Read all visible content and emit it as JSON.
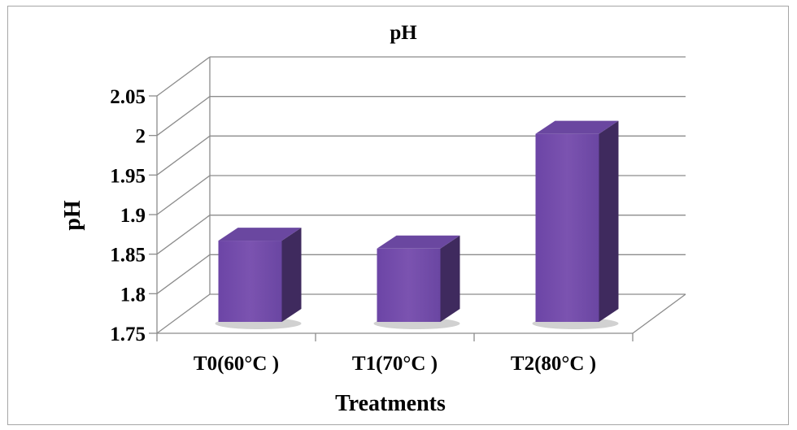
{
  "chart_data": {
    "type": "bar",
    "title": "pH",
    "xlabel": "Treatments",
    "ylabel": "pH",
    "categories": [
      "T0(60°C )",
      "T1(70°C )",
      "T2(80°C )"
    ],
    "values": [
      1.865,
      1.855,
      2.0
    ],
    "ylim": [
      1.75,
      2.05
    ],
    "yticks": [
      "2.05",
      "2",
      "1.95",
      "1.9",
      "1.85",
      "1.8",
      "1.75"
    ],
    "grid": true,
    "legend": "none",
    "style": "3d-column"
  },
  "colors": {
    "bar_front": "#7b53b0",
    "bar_side": "#3f2a5e",
    "bar_top": "#6a47a0",
    "gridline": "#8c8c8c",
    "frame": "#a6a6a6"
  }
}
